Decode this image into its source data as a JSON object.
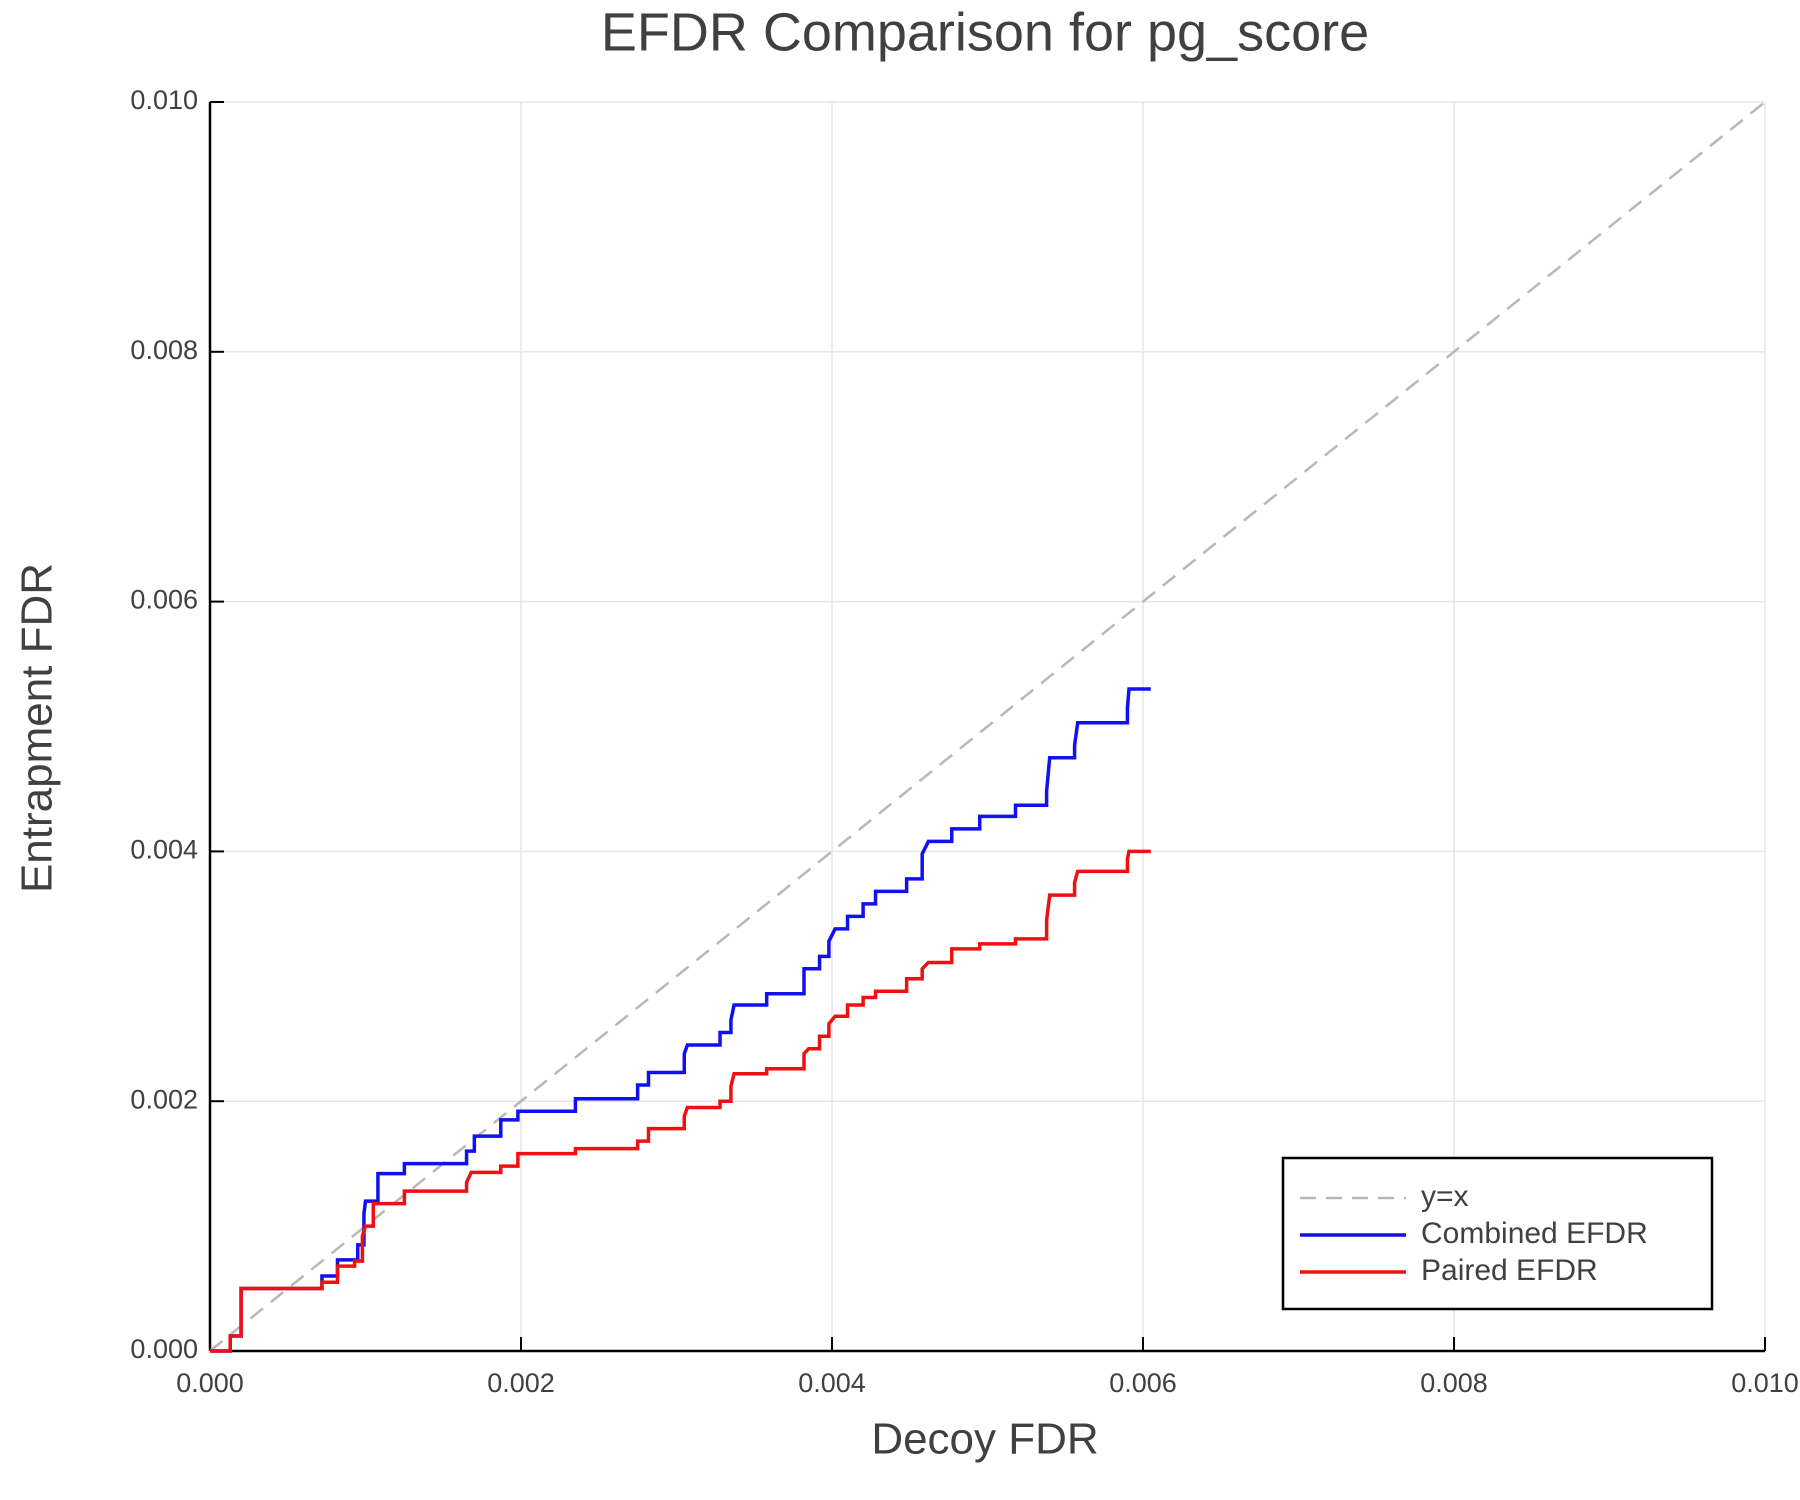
{
  "chart_data": {
    "type": "line",
    "title": "EFDR Comparison for pg_score",
    "x_label": "Decoy FDR",
    "y_label": "Entrapment FDR",
    "xlim": [
      0,
      0.01
    ],
    "ylim": [
      0,
      0.01
    ],
    "xticks": [
      {
        "value": 0,
        "label": "0.000"
      },
      {
        "value": 0.002,
        "label": "0.002"
      },
      {
        "value": 0.004,
        "label": "0.004"
      },
      {
        "value": 0.006,
        "label": "0.006"
      },
      {
        "value": 0.008,
        "label": "0.008"
      },
      {
        "value": 0.01,
        "label": "0.010"
      }
    ],
    "yticks": [
      {
        "value": 0,
        "label": "0.000"
      },
      {
        "value": 0.002,
        "label": "0.002"
      },
      {
        "value": 0.004,
        "label": "0.004"
      },
      {
        "value": 0.006,
        "label": "0.006"
      },
      {
        "value": 0.008,
        "label": "0.008"
      },
      {
        "value": 0.01,
        "label": "0.010"
      }
    ],
    "grid": true,
    "legend": "lower right",
    "series": [
      {
        "name": "y=x",
        "color": "#b8b8b8",
        "dashed": true,
        "x": [
          0,
          0.01
        ],
        "values": [
          0,
          0.01
        ]
      },
      {
        "name": "Combined EFDR",
        "color": "#1010f0",
        "dashed": false,
        "x": [
          0,
          0.00013,
          0.00013,
          0.0002,
          0.0002,
          0.00072,
          0.00072,
          0.00082,
          0.00082,
          0.00095,
          0.00095,
          0.00099,
          0.00099,
          0.001,
          0.00108,
          0.00108,
          0.00125,
          0.00125,
          0.00165,
          0.00165,
          0.0017,
          0.0017,
          0.00187,
          0.00187,
          0.00198,
          0.00198,
          0.00235,
          0.00235,
          0.00275,
          0.00275,
          0.00282,
          0.00282,
          0.00305,
          0.00305,
          0.00307,
          0.00328,
          0.00328,
          0.00335,
          0.00335,
          0.00337,
          0.00358,
          0.00358,
          0.00382,
          0.00382,
          0.00392,
          0.00392,
          0.00398,
          0.00398,
          0.00402,
          0.0041,
          0.0041,
          0.0042,
          0.0042,
          0.00428,
          0.00428,
          0.00448,
          0.00448,
          0.00458,
          0.00458,
          0.00462,
          0.00477,
          0.00477,
          0.00495,
          0.00495,
          0.00518,
          0.00518,
          0.00538,
          0.00538,
          0.0054,
          0.00556,
          0.00556,
          0.00558,
          0.0059,
          0.0059,
          0.00591,
          0.00605
        ],
        "values": [
          0,
          0,
          0.00012,
          0.00012,
          0.0005,
          0.0005,
          0.0006,
          0.0006,
          0.00073,
          0.00073,
          0.00085,
          0.00085,
          0.0011,
          0.0012,
          0.0012,
          0.00142,
          0.00142,
          0.0015,
          0.0015,
          0.0016,
          0.0016,
          0.00172,
          0.00172,
          0.00185,
          0.00185,
          0.00192,
          0.00192,
          0.00202,
          0.00202,
          0.00213,
          0.00213,
          0.00223,
          0.00223,
          0.00238,
          0.00245,
          0.00245,
          0.00255,
          0.00255,
          0.00265,
          0.00277,
          0.00277,
          0.00286,
          0.00286,
          0.00306,
          0.00306,
          0.00316,
          0.00316,
          0.00328,
          0.00338,
          0.00338,
          0.00348,
          0.00348,
          0.00358,
          0.00358,
          0.00368,
          0.00368,
          0.00378,
          0.00378,
          0.00398,
          0.00408,
          0.00408,
          0.00418,
          0.00418,
          0.00428,
          0.00428,
          0.00437,
          0.00437,
          0.00448,
          0.00475,
          0.00475,
          0.00485,
          0.00503,
          0.00503,
          0.00515,
          0.0053,
          0.0053
        ]
      },
      {
        "name": "Paired EFDR",
        "color": "#f01010",
        "dashed": false,
        "x": [
          0,
          0.00013,
          0.00013,
          0.0002,
          0.0002,
          0.00072,
          0.00072,
          0.00082,
          0.00082,
          0.00093,
          0.00093,
          0.00098,
          0.00098,
          0.001,
          0.00105,
          0.00105,
          0.00125,
          0.00125,
          0.00165,
          0.00165,
          0.00168,
          0.00187,
          0.00187,
          0.00198,
          0.00198,
          0.00235,
          0.00235,
          0.00275,
          0.00275,
          0.00282,
          0.00282,
          0.00305,
          0.00305,
          0.00307,
          0.00328,
          0.00328,
          0.00335,
          0.00335,
          0.00337,
          0.00358,
          0.00358,
          0.00382,
          0.00382,
          0.00385,
          0.00392,
          0.00392,
          0.00398,
          0.00398,
          0.00402,
          0.0041,
          0.0041,
          0.0042,
          0.0042,
          0.00428,
          0.00428,
          0.00448,
          0.00448,
          0.00458,
          0.00458,
          0.00462,
          0.00477,
          0.00477,
          0.00495,
          0.00495,
          0.00518,
          0.00518,
          0.00538,
          0.00538,
          0.0054,
          0.00556,
          0.00556,
          0.00558,
          0.0059,
          0.0059,
          0.00591,
          0.00605
        ],
        "values": [
          0,
          0,
          0.00012,
          0.00012,
          0.0005,
          0.0005,
          0.00055,
          0.00055,
          0.00068,
          0.00068,
          0.00072,
          0.00072,
          0.00092,
          0.001,
          0.001,
          0.00118,
          0.00118,
          0.00128,
          0.00128,
          0.00135,
          0.00143,
          0.00143,
          0.00148,
          0.00148,
          0.00158,
          0.00158,
          0.00162,
          0.00162,
          0.00168,
          0.00168,
          0.00178,
          0.00178,
          0.00188,
          0.00195,
          0.00195,
          0.002,
          0.002,
          0.00212,
          0.00222,
          0.00222,
          0.00226,
          0.00226,
          0.00238,
          0.00242,
          0.00242,
          0.00252,
          0.00252,
          0.00262,
          0.00268,
          0.00268,
          0.00277,
          0.00277,
          0.00283,
          0.00283,
          0.00288,
          0.00288,
          0.00298,
          0.00298,
          0.00306,
          0.00311,
          0.00311,
          0.00322,
          0.00322,
          0.00326,
          0.00326,
          0.0033,
          0.0033,
          0.00345,
          0.00365,
          0.00365,
          0.00375,
          0.00384,
          0.00384,
          0.00394,
          0.004,
          0.004
        ]
      }
    ]
  }
}
